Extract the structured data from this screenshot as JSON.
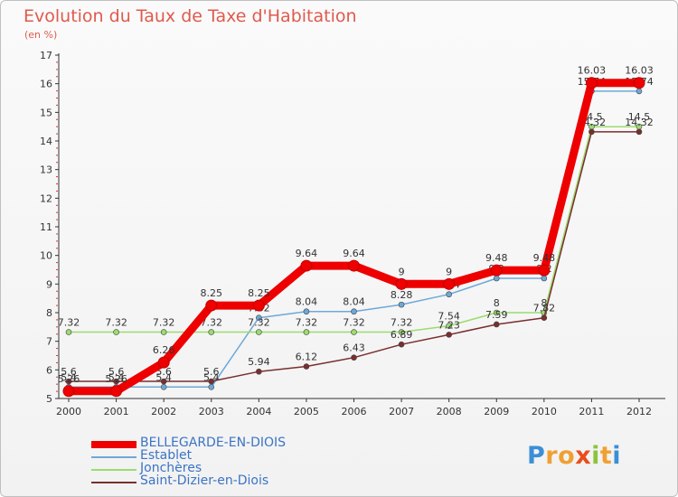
{
  "title": "Evolution du Taux de Taxe d'Habitation",
  "subtitle": "(en %)",
  "brand": {
    "letters": [
      {
        "ch": "P",
        "color": "#3b8fd6"
      },
      {
        "ch": "r",
        "color": "#f0a032"
      },
      {
        "ch": "o",
        "color": "#f0a032"
      },
      {
        "ch": "x",
        "color": "#e84e1b"
      },
      {
        "ch": "i",
        "color": "#8cc43c"
      },
      {
        "ch": "t",
        "color": "#f0a032"
      },
      {
        "ch": "i",
        "color": "#3b8fd6"
      }
    ]
  },
  "chart_data": {
    "type": "line",
    "categories": [
      "2000",
      "2001",
      "2002",
      "2003",
      "2004",
      "2005",
      "2006",
      "2007",
      "2008",
      "2009",
      "2010",
      "2011",
      "2012"
    ],
    "ylim": [
      5,
      17
    ],
    "yticks": [
      "5",
      "6",
      "7",
      "8",
      "9",
      "10",
      "11",
      "12",
      "13",
      "14",
      "15",
      "16",
      "17"
    ],
    "grid": false,
    "legend": "bottom-left",
    "series": [
      {
        "name": "BELLEGARDE-EN-DIOIS",
        "color": "#ee0000",
        "values": [
          5.26,
          5.26,
          6.26,
          8.25,
          8.25,
          9.64,
          9.64,
          9,
          9,
          9.48,
          9.48,
          16.03,
          16.03
        ],
        "labels": [
          "5.26",
          "5.26",
          "6.26",
          "8.25",
          "8.25",
          "9.64",
          "9.64",
          "9",
          "9",
          "9.48",
          "9.48",
          "16.03",
          "16.03"
        ]
      },
      {
        "name": "Establet",
        "color": "#6ea8d8",
        "values": [
          5.4,
          5.4,
          5.4,
          5.4,
          7.82,
          8.04,
          8.04,
          8.28,
          8.64,
          9.2,
          9.2,
          15.74,
          15.74
        ],
        "labels": [
          "5.4",
          "5.4",
          "5.4",
          "5.4",
          "7.82",
          "8.04",
          "8.04",
          "8.28",
          "8.64",
          "9.2",
          "9.2",
          "15.74",
          "15.74"
        ]
      },
      {
        "name": "Jonchères",
        "color": "#9bdc6e",
        "values": [
          7.32,
          7.32,
          7.32,
          7.32,
          7.32,
          7.32,
          7.32,
          7.32,
          7.54,
          8,
          8,
          14.5,
          14.5
        ],
        "labels": [
          "7.32",
          "7.32",
          "7.32",
          "7.32",
          "7.32",
          "7.32",
          "7.32",
          "7.32",
          "7.54",
          "8",
          "8",
          "14.5",
          "14.5"
        ]
      },
      {
        "name": "Saint-Dizier-en-Diois",
        "color": "#7a2e2e",
        "values": [
          5.6,
          5.6,
          5.6,
          5.6,
          5.94,
          6.12,
          6.43,
          6.89,
          7.23,
          7.59,
          7.82,
          14.32,
          14.32
        ],
        "labels": [
          "5.6",
          "5.6",
          "5.6",
          "5.6",
          "5.94",
          "6.12",
          "6.43",
          "6.89",
          "7.23",
          "7.59",
          "7.82",
          "14.32",
          "14.32"
        ]
      }
    ]
  }
}
